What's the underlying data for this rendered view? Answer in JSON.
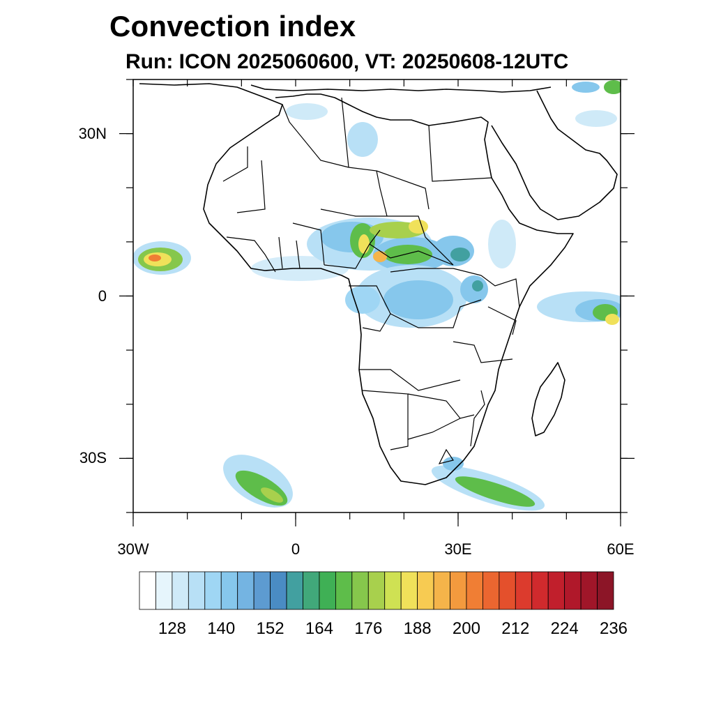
{
  "title": "Convection index",
  "subtitle": "Run: ICON 2025060600,  VT: 20250608-12UTC",
  "map": {
    "projection": "cylindrical-equidistant",
    "lon_range": [
      -30,
      60
    ],
    "lat_range": [
      -40,
      40
    ],
    "lat_ticks": [
      {
        "value": 30,
        "label": "30N"
      },
      {
        "value": 0,
        "label": "0"
      },
      {
        "value": -30,
        "label": "30S"
      }
    ],
    "lon_ticks": [
      {
        "value": -30,
        "label": "30W"
      },
      {
        "value": 0,
        "label": "0"
      },
      {
        "value": 30,
        "label": "30E"
      },
      {
        "value": 60,
        "label": "60E"
      }
    ],
    "features": [
      "coastlines",
      "country-borders"
    ]
  },
  "colorbar": {
    "colors": [
      "#ffffff",
      "#e6f5fc",
      "#cfeaf8",
      "#b8e0f6",
      "#9fd6f4",
      "#86c7ec",
      "#74b4e2",
      "#5d9bd1",
      "#4a8cc4",
      "#42a0a0",
      "#41a87a",
      "#3fb055",
      "#5ebd4a",
      "#86c74c",
      "#a8d04d",
      "#cfe153",
      "#f0e15a",
      "#f7cb52",
      "#f5b44a",
      "#f39a3e",
      "#f07e34",
      "#eb6630",
      "#e4502c",
      "#dc3b2d",
      "#d02a2d",
      "#c11f2c",
      "#b0182a",
      "#a01629",
      "#8c1527"
    ],
    "labels": [
      "128",
      "140",
      "152",
      "164",
      "176",
      "188",
      "200",
      "212",
      "224",
      "236"
    ]
  }
}
